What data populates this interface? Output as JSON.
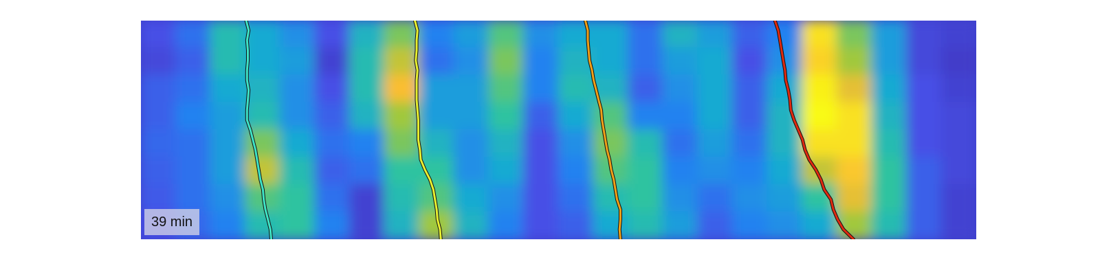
{
  "chart_data": {
    "type": "heatmap",
    "title": "",
    "xlabel": "",
    "ylabel": "",
    "annotations": [
      "39 min"
    ],
    "colormap": "parula",
    "heatmap": {
      "rows": 8,
      "cols": 24,
      "values": [
        [
          0.15,
          0.25,
          0.55,
          0.45,
          0.35,
          0.15,
          0.5,
          0.7,
          0.3,
          0.4,
          0.65,
          0.35,
          0.45,
          0.45,
          0.25,
          0.5,
          0.4,
          0.2,
          0.3,
          0.95,
          0.7,
          0.4,
          0.12,
          0.1
        ],
        [
          0.12,
          0.2,
          0.55,
          0.45,
          0.4,
          0.1,
          0.55,
          0.8,
          0.25,
          0.35,
          0.7,
          0.3,
          0.5,
          0.45,
          0.25,
          0.4,
          0.45,
          0.15,
          0.35,
          0.92,
          0.75,
          0.4,
          0.12,
          0.08
        ],
        [
          0.2,
          0.25,
          0.45,
          0.5,
          0.35,
          0.15,
          0.55,
          0.88,
          0.4,
          0.4,
          0.65,
          0.3,
          0.55,
          0.5,
          0.2,
          0.35,
          0.45,
          0.2,
          0.45,
          0.98,
          0.85,
          0.45,
          0.15,
          0.1
        ],
        [
          0.2,
          0.3,
          0.4,
          0.55,
          0.35,
          0.2,
          0.5,
          0.75,
          0.4,
          0.4,
          0.6,
          0.2,
          0.45,
          0.65,
          0.3,
          0.3,
          0.45,
          0.2,
          0.5,
          1.0,
          0.95,
          0.5,
          0.15,
          0.12
        ],
        [
          0.22,
          0.25,
          0.4,
          0.7,
          0.45,
          0.25,
          0.3,
          0.7,
          0.5,
          0.35,
          0.5,
          0.15,
          0.35,
          0.7,
          0.55,
          0.25,
          0.4,
          0.25,
          0.5,
          0.95,
          0.95,
          0.55,
          0.15,
          0.12
        ],
        [
          0.2,
          0.25,
          0.4,
          0.8,
          0.55,
          0.2,
          0.25,
          0.6,
          0.6,
          0.35,
          0.45,
          0.15,
          0.3,
          0.65,
          0.6,
          0.3,
          0.35,
          0.3,
          0.45,
          0.8,
          0.9,
          0.6,
          0.2,
          0.12
        ],
        [
          0.18,
          0.25,
          0.35,
          0.65,
          0.6,
          0.25,
          0.1,
          0.55,
          0.65,
          0.45,
          0.35,
          0.15,
          0.25,
          0.55,
          0.6,
          0.35,
          0.25,
          0.35,
          0.4,
          0.6,
          0.85,
          0.6,
          0.2,
          0.1
        ],
        [
          0.15,
          0.22,
          0.3,
          0.55,
          0.6,
          0.3,
          0.1,
          0.5,
          0.75,
          0.5,
          0.3,
          0.15,
          0.2,
          0.45,
          0.55,
          0.4,
          0.2,
          0.3,
          0.35,
          0.45,
          0.75,
          0.55,
          0.2,
          0.1
        ]
      ]
    },
    "tracks": [
      {
        "color": "#3fe3c6",
        "x": [
          0.126,
          0.129,
          0.127,
          0.128,
          0.128,
          0.127,
          0.127,
          0.129,
          0.128,
          0.127,
          0.127,
          0.131,
          0.134,
          0.137,
          0.139,
          0.141,
          0.143,
          0.146,
          0.147,
          0.149,
          0.152,
          0.155,
          0.156
        ],
        "y": [
          0,
          0.045,
          0.09,
          0.136,
          0.182,
          0.227,
          0.273,
          0.318,
          0.364,
          0.409,
          0.455,
          0.5,
          0.545,
          0.591,
          0.636,
          0.682,
          0.727,
          0.773,
          0.818,
          0.864,
          0.909,
          0.955,
          1
        ]
      },
      {
        "color": "#e8f030",
        "x": [
          0.328,
          0.331,
          0.33,
          0.33,
          0.329,
          0.331,
          0.33,
          0.33,
          0.33,
          0.331,
          0.332,
          0.332,
          0.332,
          0.334,
          0.335,
          0.34,
          0.346,
          0.35,
          0.352,
          0.354,
          0.355,
          0.358,
          0.359
        ],
        "y": [
          0,
          0.045,
          0.09,
          0.136,
          0.182,
          0.227,
          0.273,
          0.318,
          0.364,
          0.409,
          0.455,
          0.5,
          0.545,
          0.591,
          0.636,
          0.682,
          0.727,
          0.773,
          0.818,
          0.864,
          0.909,
          0.955,
          1
        ]
      },
      {
        "color": "#f0a018",
        "x": [
          0.532,
          0.535,
          0.535,
          0.536,
          0.537,
          0.54,
          0.542,
          0.545,
          0.548,
          0.551,
          0.552,
          0.554,
          0.556,
          0.558,
          0.561,
          0.563,
          0.566,
          0.568,
          0.57,
          0.574,
          0.574,
          0.573,
          0.574
        ],
        "y": [
          0,
          0.045,
          0.09,
          0.136,
          0.182,
          0.227,
          0.273,
          0.318,
          0.364,
          0.409,
          0.455,
          0.5,
          0.545,
          0.591,
          0.636,
          0.682,
          0.727,
          0.773,
          0.818,
          0.864,
          0.909,
          0.955,
          1
        ]
      },
      {
        "color": "#e02a10",
        "x": [
          0.759,
          0.763,
          0.765,
          0.767,
          0.769,
          0.771,
          0.772,
          0.775,
          0.777,
          0.778,
          0.782,
          0.787,
          0.792,
          0.795,
          0.8,
          0.808,
          0.814,
          0.818,
          0.826,
          0.829,
          0.834,
          0.841,
          0.853
        ],
        "y": [
          0,
          0.045,
          0.09,
          0.136,
          0.182,
          0.227,
          0.273,
          0.318,
          0.364,
          0.409,
          0.455,
          0.5,
          0.545,
          0.591,
          0.636,
          0.682,
          0.727,
          0.773,
          0.818,
          0.864,
          0.909,
          0.955,
          1
        ]
      }
    ]
  }
}
